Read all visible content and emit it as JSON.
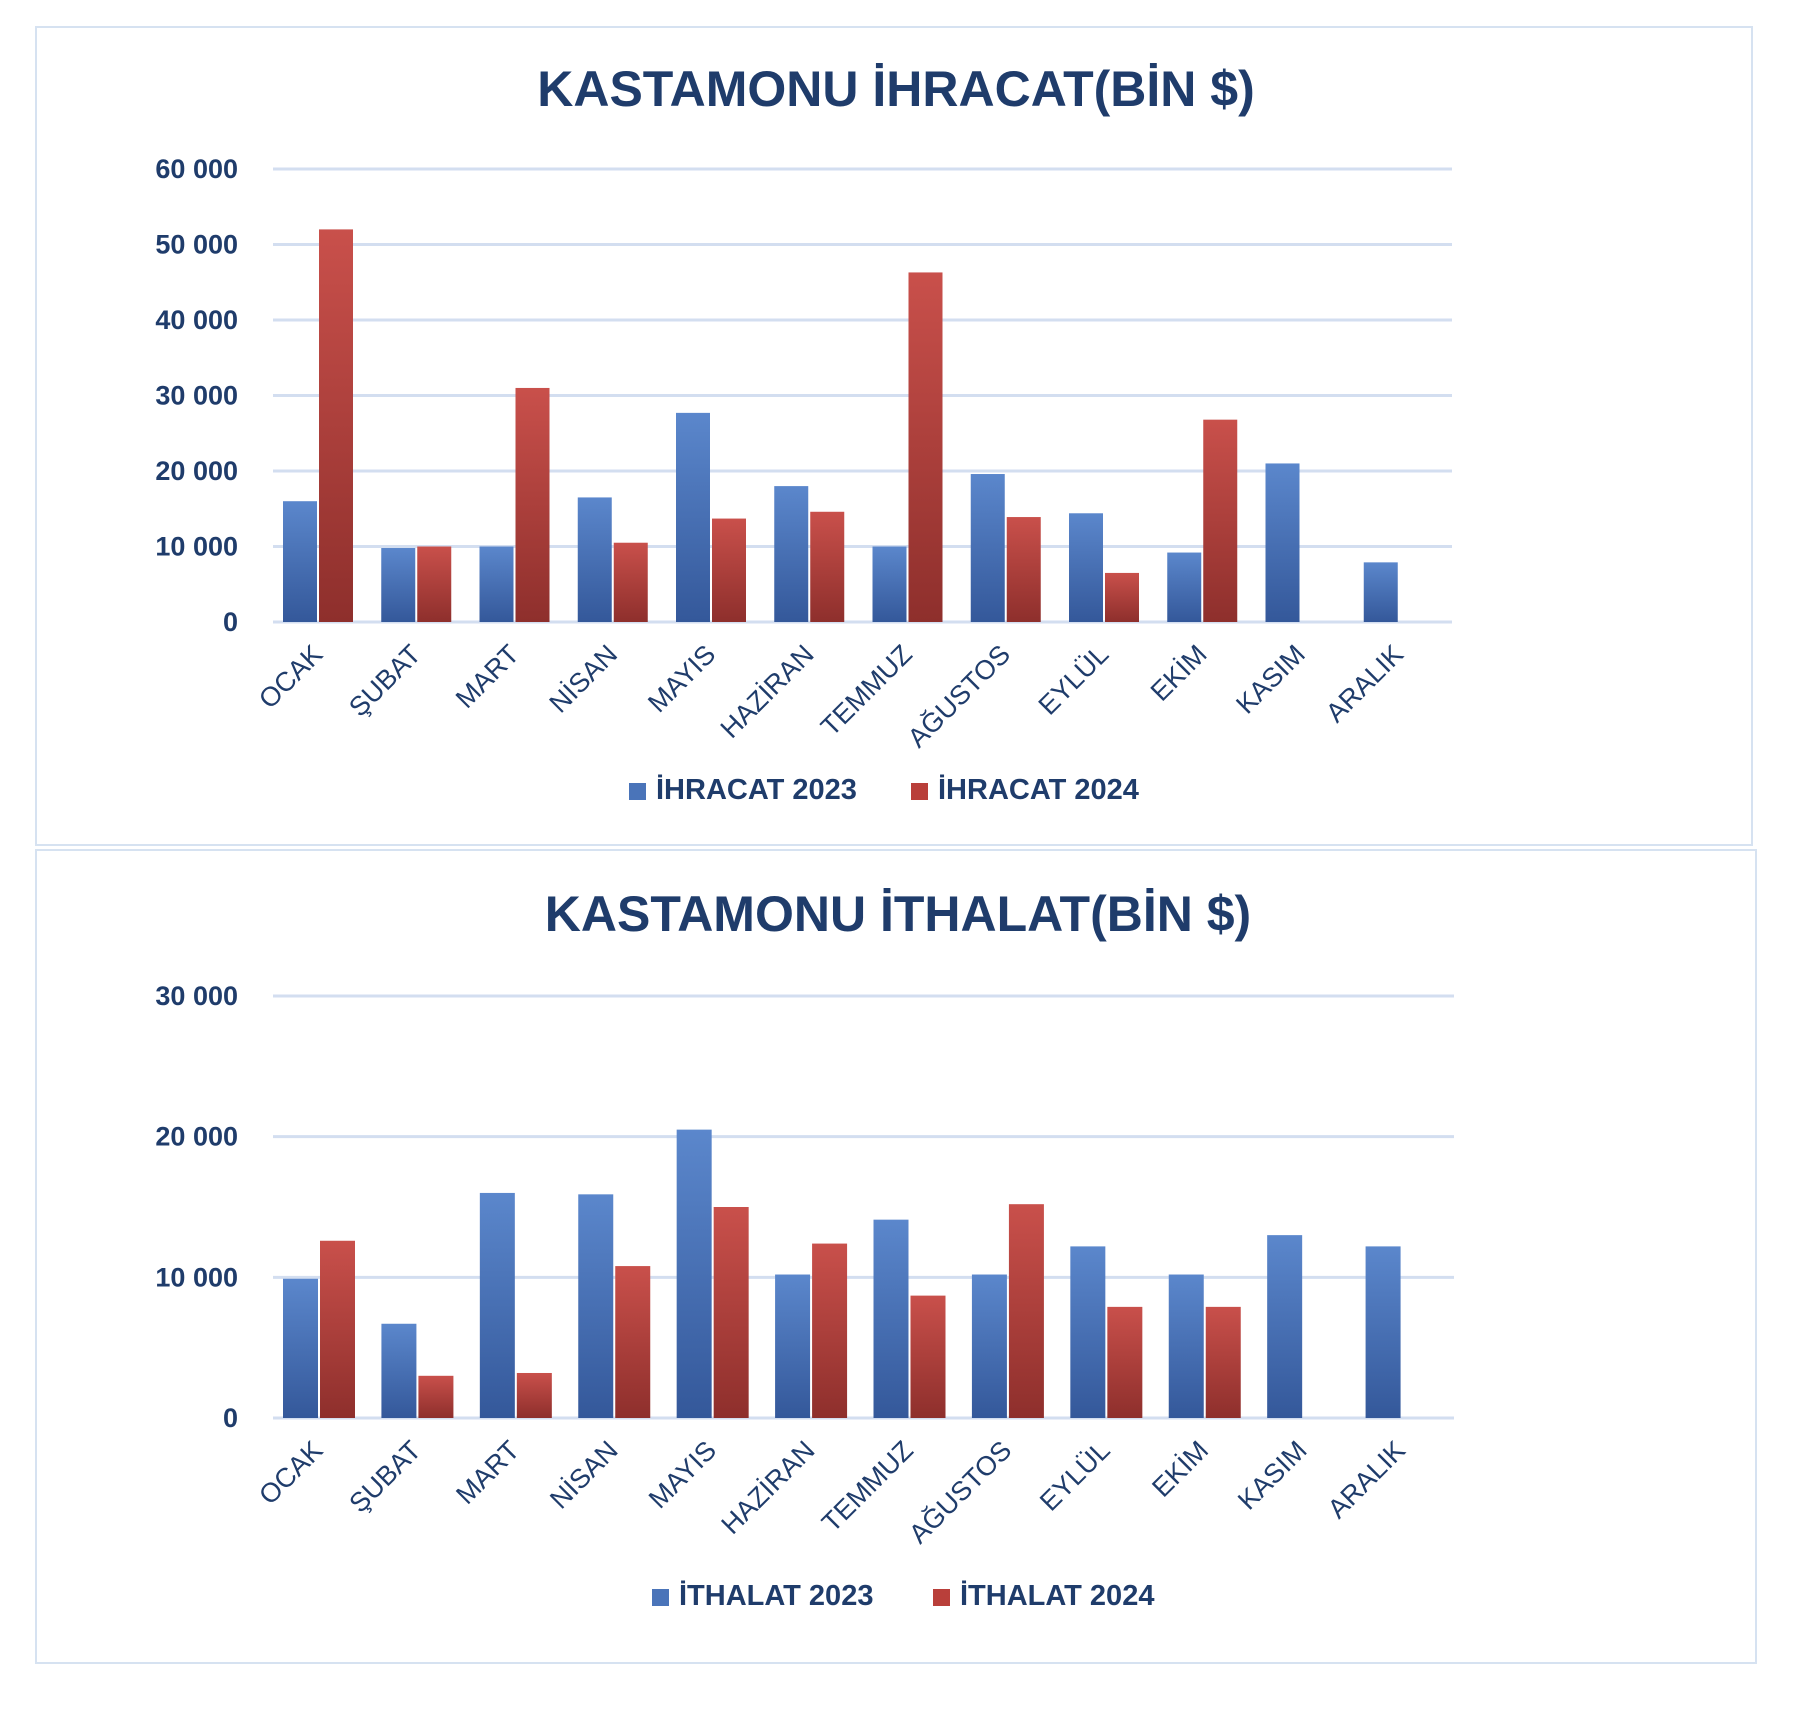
{
  "chart_data": [
    {
      "type": "bar",
      "title": "KASTAMONU İHRACAT(BİN $)",
      "xlabel": "",
      "ylabel": "",
      "categories": [
        "OCAK",
        "ŞUBAT",
        "MART",
        "NİSAN",
        "MAYIS",
        "HAZİRAN",
        "TEMMUZ",
        "AĞUSTOS",
        "EYLÜL",
        "EKİM",
        "KASIM",
        "ARALIK"
      ],
      "y_ticks": [
        0,
        10000,
        20000,
        30000,
        40000,
        50000,
        60000
      ],
      "y_tick_labels": [
        "0",
        "10 000",
        "20 000",
        "30 000",
        "40 000",
        "50 000",
        "60 000"
      ],
      "ylim": [
        0,
        60000
      ],
      "grid": true,
      "legend_position": "bottom",
      "series": [
        {
          "name": "İHRACAT 2023",
          "color": "#4a74b9",
          "values": [
            16000,
            9800,
            10000,
            16500,
            27700,
            18000,
            10000,
            19600,
            14400,
            9200,
            21000,
            7900
          ]
        },
        {
          "name": "İHRACAT 2024",
          "color": "#b93f3a",
          "values": [
            52000,
            10000,
            31000,
            10500,
            13700,
            14600,
            46300,
            13900,
            6500,
            26800,
            null,
            null
          ]
        }
      ]
    },
    {
      "type": "bar",
      "title": "KASTAMONU İTHALAT(BİN $)",
      "xlabel": "",
      "ylabel": "",
      "categories": [
        "OCAK",
        "ŞUBAT",
        "MART",
        "NİSAN",
        "MAYIS",
        "HAZİRAN",
        "TEMMUZ",
        "AĞUSTOS",
        "EYLÜL",
        "EKİM",
        "KASIM",
        "ARALIK"
      ],
      "y_ticks": [
        0,
        10000,
        20000,
        30000
      ],
      "y_tick_labels": [
        "0",
        "10 000",
        "20 000",
        "30 000"
      ],
      "ylim": [
        0,
        30000
      ],
      "grid": true,
      "legend_position": "bottom",
      "series": [
        {
          "name": "İTHALAT 2023",
          "color": "#4a74b9",
          "values": [
            9900,
            6700,
            16000,
            15900,
            20500,
            10200,
            14100,
            10200,
            12200,
            10200,
            13000,
            12200
          ]
        },
        {
          "name": "İTHALAT 2024",
          "color": "#b93f3a",
          "values": [
            12600,
            3000,
            3200,
            10800,
            15000,
            12400,
            8700,
            15200,
            7900,
            7900,
            null,
            null
          ]
        }
      ]
    }
  ]
}
